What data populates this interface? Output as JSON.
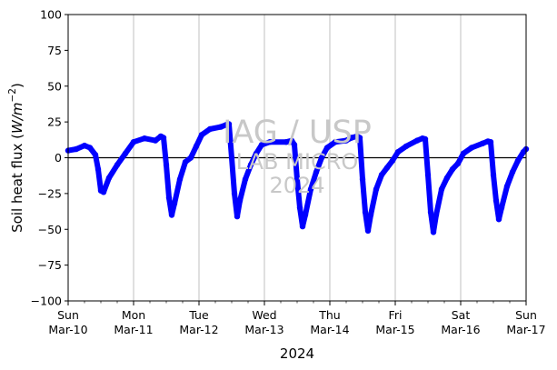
{
  "chart_data": {
    "type": "scatter",
    "title": "",
    "xlabel": "2024",
    "ylabel_prefix": "Soil heat flux (",
    "ylabel_unit_main": "W/m",
    "ylabel_unit_exp": "−2",
    "ylabel_suffix": ")",
    "ylim": [
      -100,
      100
    ],
    "yticks": [
      100,
      75,
      50,
      25,
      0,
      -25,
      -50,
      -75,
      -100
    ],
    "ytick_labels": [
      "100",
      "75",
      "50",
      "25",
      "0",
      "−25",
      "−50",
      "−75",
      "−100"
    ],
    "xlim": [
      "2024-03-10T00:00",
      "2024-03-17T00:00"
    ],
    "xticks": [
      {
        "day": "Sun",
        "date": "Mar-10"
      },
      {
        "day": "Mon",
        "date": "Mar-11"
      },
      {
        "day": "Tue",
        "date": "Mar-12"
      },
      {
        "day": "Wed",
        "date": "Mar-13"
      },
      {
        "day": "Thu",
        "date": "Mar-14"
      },
      {
        "day": "Fri",
        "date": "Mar-15"
      },
      {
        "day": "Sat",
        "date": "Mar-16"
      },
      {
        "day": "Sun",
        "date": "Mar-17"
      }
    ],
    "grid": "vertical-at-major-ticks",
    "zero_line": true,
    "series": [
      {
        "color": "#0000ff",
        "points": [
          [
            "2024-03-10T00:00",
            5
          ],
          [
            "2024-03-10T03:00",
            6
          ],
          [
            "2024-03-10T06:00",
            8.5
          ],
          [
            "2024-03-10T08:00",
            7
          ],
          [
            "2024-03-10T10:00",
            2
          ],
          [
            "2024-03-10T11:00",
            -8
          ],
          [
            "2024-03-10T12:00",
            -23
          ],
          [
            "2024-03-10T13:00",
            -24
          ],
          [
            "2024-03-10T15:00",
            -14
          ],
          [
            "2024-03-10T18:00",
            -5
          ],
          [
            "2024-03-10T21:00",
            3
          ],
          [
            "2024-03-11T00:00",
            11
          ],
          [
            "2024-03-11T04:00",
            13.5
          ],
          [
            "2024-03-11T08:00",
            12
          ],
          [
            "2024-03-11T10:00",
            15
          ],
          [
            "2024-03-11T11:00",
            14
          ],
          [
            "2024-03-11T12:00",
            -5
          ],
          [
            "2024-03-11T13:00",
            -28
          ],
          [
            "2024-03-11T14:00",
            -40
          ],
          [
            "2024-03-11T15:00",
            -32
          ],
          [
            "2024-03-11T17:00",
            -15
          ],
          [
            "2024-03-11T19:00",
            -3
          ],
          [
            "2024-03-11T21:00",
            0
          ],
          [
            "2024-03-11T23:00",
            8
          ],
          [
            "2024-03-12T01:00",
            16
          ],
          [
            "2024-03-12T04:00",
            20
          ],
          [
            "2024-03-12T08:00",
            21.5
          ],
          [
            "2024-03-12T10:00",
            23
          ],
          [
            "2024-03-12T11:00",
            23.5
          ],
          [
            "2024-03-12T12:00",
            0
          ],
          [
            "2024-03-12T13:00",
            -25
          ],
          [
            "2024-03-12T14:00",
            -41
          ],
          [
            "2024-03-12T15:00",
            -30
          ],
          [
            "2024-03-12T17:00",
            -15
          ],
          [
            "2024-03-12T19:00",
            -5
          ],
          [
            "2024-03-12T21:00",
            3
          ],
          [
            "2024-03-12T23:00",
            9
          ],
          [
            "2024-03-13T02:00",
            11
          ],
          [
            "2024-03-13T08:00",
            11
          ],
          [
            "2024-03-13T10:00",
            12
          ],
          [
            "2024-03-13T11:00",
            9
          ],
          [
            "2024-03-13T12:00",
            -15
          ],
          [
            "2024-03-13T13:00",
            -35
          ],
          [
            "2024-03-13T14:00",
            -48
          ],
          [
            "2024-03-13T15:00",
            -40
          ],
          [
            "2024-03-13T17:00",
            -22
          ],
          [
            "2024-03-13T19:00",
            -10
          ],
          [
            "2024-03-13T21:00",
            0
          ],
          [
            "2024-03-13T23:00",
            7
          ],
          [
            "2024-03-14T02:00",
            11
          ],
          [
            "2024-03-14T06:00",
            12
          ],
          [
            "2024-03-14T08:00",
            14
          ],
          [
            "2024-03-14T10:00",
            15
          ],
          [
            "2024-03-14T11:00",
            14
          ],
          [
            "2024-03-14T12:00",
            -15
          ],
          [
            "2024-03-14T13:00",
            -38
          ],
          [
            "2024-03-14T14:00",
            -51
          ],
          [
            "2024-03-14T15:00",
            -40
          ],
          [
            "2024-03-14T17:00",
            -22
          ],
          [
            "2024-03-14T19:00",
            -12
          ],
          [
            "2024-03-14T21:00",
            -7
          ],
          [
            "2024-03-14T23:00",
            -2
          ],
          [
            "2024-03-15T01:00",
            4
          ],
          [
            "2024-03-15T04:00",
            8
          ],
          [
            "2024-03-15T08:00",
            12
          ],
          [
            "2024-03-15T10:00",
            13.5
          ],
          [
            "2024-03-15T11:00",
            13
          ],
          [
            "2024-03-15T12:00",
            -12
          ],
          [
            "2024-03-15T13:00",
            -38
          ],
          [
            "2024-03-15T14:00",
            -52
          ],
          [
            "2024-03-15T15:00",
            -40
          ],
          [
            "2024-03-15T17:00",
            -22
          ],
          [
            "2024-03-15T19:00",
            -14
          ],
          [
            "2024-03-15T21:00",
            -8
          ],
          [
            "2024-03-15T23:00",
            -4
          ],
          [
            "2024-03-16T01:00",
            3
          ],
          [
            "2024-03-16T04:00",
            7
          ],
          [
            "2024-03-16T08:00",
            10
          ],
          [
            "2024-03-16T10:00",
            11.5
          ],
          [
            "2024-03-16T11:00",
            11
          ],
          [
            "2024-03-16T12:00",
            -12
          ],
          [
            "2024-03-16T13:00",
            -30
          ],
          [
            "2024-03-16T14:00",
            -43
          ],
          [
            "2024-03-16T15:00",
            -35
          ],
          [
            "2024-03-16T17:00",
            -20
          ],
          [
            "2024-03-16T19:00",
            -10
          ],
          [
            "2024-03-16T21:00",
            -2
          ],
          [
            "2024-03-16T23:00",
            4
          ],
          [
            "2024-03-17T00:00",
            6
          ]
        ]
      }
    ]
  },
  "watermark": {
    "line1": "IAG / USP",
    "line2": "LAB MICRO",
    "line3": "2024"
  }
}
